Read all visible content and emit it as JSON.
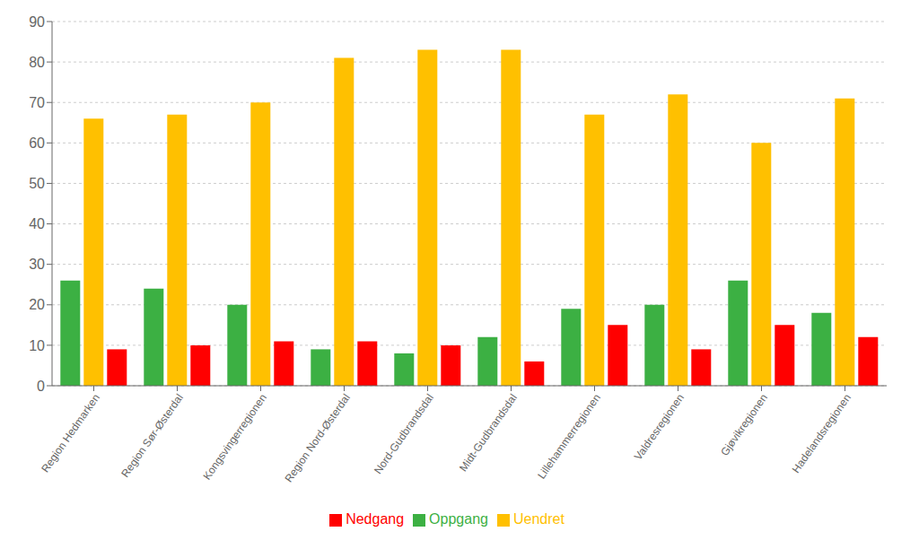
{
  "chart_data": {
    "type": "bar",
    "categories": [
      "Region Hedmarken",
      "Region Sør-Østerdal",
      "Kongsvingerregionen",
      "Region Nord-Østerdal",
      "Nord-Gudbrandsdal",
      "Midt-Gudbrandsdal",
      "Lillehammerregionen",
      "Valdresregionen",
      "Gjøvikregionen",
      "Hadelandsregionen"
    ],
    "series": [
      {
        "name": "Oppgang",
        "color": "#3CB043",
        "values": [
          26,
          24,
          20,
          9,
          8,
          12,
          19,
          20,
          26,
          18
        ]
      },
      {
        "name": "Uendret",
        "color": "#FFC000",
        "values": [
          66,
          67,
          70,
          81,
          83,
          83,
          67,
          72,
          60,
          71
        ]
      },
      {
        "name": "Nedgang",
        "color": "#FF0000",
        "values": [
          9,
          10,
          11,
          11,
          10,
          6,
          15,
          9,
          15,
          12
        ]
      }
    ],
    "ylim": [
      0,
      90
    ],
    "yticks": [
      0,
      10,
      20,
      30,
      40,
      50,
      60,
      70,
      80,
      90
    ],
    "grid": true,
    "legend": "bottom"
  }
}
